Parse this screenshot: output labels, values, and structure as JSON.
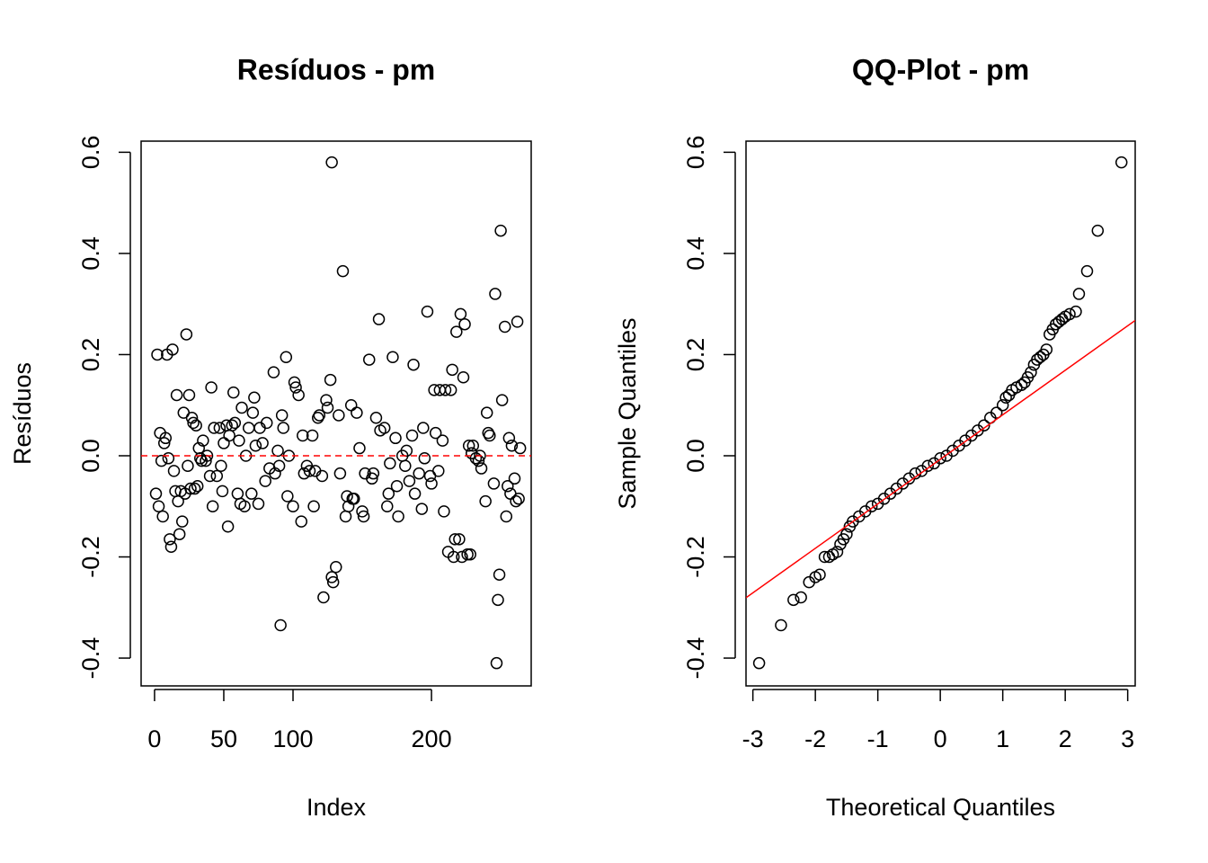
{
  "chart_data": [
    {
      "type": "scatter",
      "title": "Resíduos - pm",
      "xlabel": "Index",
      "ylabel": "Resíduos",
      "x": [
        1,
        2,
        3,
        4,
        5,
        6,
        7,
        8,
        9,
        10,
        11,
        12,
        13,
        14,
        15,
        16,
        17,
        18,
        19,
        20,
        21,
        22,
        23,
        24,
        25,
        26,
        27,
        28,
        29,
        30,
        31,
        32,
        33,
        34,
        35,
        37,
        38,
        40,
        41,
        42,
        43,
        45,
        47,
        48,
        49,
        50,
        52,
        53,
        54,
        56,
        57,
        58,
        60,
        61,
        62,
        63,
        65,
        66,
        68,
        70,
        71,
        72,
        73,
        75,
        76,
        78,
        80,
        81,
        83,
        86,
        87,
        91,
        89,
        90,
        95,
        92,
        93,
        96,
        97,
        100,
        101,
        102,
        104,
        106,
        107,
        108,
        110,
        112,
        114,
        115,
        116,
        118,
        119,
        121,
        122,
        124,
        125,
        128,
        127,
        128,
        129,
        131,
        133,
        134,
        136,
        138,
        139,
        140,
        142,
        143,
        144,
        146,
        148,
        150,
        151,
        152,
        155,
        157,
        158,
        160,
        162,
        163,
        166,
        168,
        169,
        170,
        172,
        174,
        175,
        176,
        179,
        181,
        182,
        184,
        186,
        187,
        188,
        191,
        193,
        194,
        195,
        197,
        199,
        200,
        202,
        203,
        205,
        206,
        208,
        209,
        210,
        212,
        214,
        215,
        216,
        217,
        218,
        220,
        221,
        222,
        223,
        224,
        226,
        227,
        228,
        229,
        230,
        232,
        234,
        235,
        236,
        239,
        240,
        241,
        242,
        245,
        246,
        247,
        248,
        249,
        250,
        251,
        253,
        254,
        255,
        256,
        257,
        258,
        260,
        261,
        262,
        263,
        264
      ],
      "values": [
        -0.075,
        0.2,
        -0.1,
        0.045,
        -0.01,
        -0.12,
        0.025,
        0.035,
        0.2,
        -0.005,
        -0.165,
        -0.18,
        0.21,
        -0.03,
        -0.07,
        0.12,
        -0.09,
        -0.155,
        -0.07,
        -0.13,
        0.085,
        -0.075,
        0.24,
        -0.02,
        0.12,
        -0.065,
        0.075,
        0.065,
        -0.065,
        0.06,
        -0.06,
        0.015,
        -0.005,
        -0.01,
        0.03,
        -0.01,
        0,
        -0.04,
        0.135,
        -0.1,
        0.055,
        -0.04,
        0.055,
        -0.02,
        -0.07,
        0.025,
        0.06,
        -0.14,
        0.04,
        0.06,
        0.125,
        0.065,
        -0.075,
        0.03,
        -0.095,
        0.095,
        -0.1,
        0,
        0.055,
        -0.075,
        0.085,
        0.115,
        0.02,
        -0.095,
        0.055,
        0.025,
        -0.05,
        0.065,
        -0.025,
        0.165,
        -0.035,
        -0.335,
        0.01,
        -0.02,
        0.195,
        0.08,
        0.055,
        -0.08,
        0,
        -0.1,
        0.145,
        0.135,
        0.12,
        -0.13,
        0.04,
        -0.035,
        -0.02,
        -0.03,
        0.04,
        -0.1,
        -0.03,
        0.075,
        0.08,
        -0.04,
        -0.28,
        0.11,
        0.095,
        0.58,
        0.15,
        -0.24,
        -0.25,
        -0.22,
        0.08,
        -0.035,
        0.365,
        -0.12,
        -0.08,
        -0.1,
        0.1,
        -0.085,
        -0.085,
        0.085,
        0.015,
        -0.11,
        -0.12,
        -0.035,
        0.19,
        -0.045,
        -0.035,
        0.075,
        0.27,
        0.05,
        0.055,
        -0.1,
        -0.075,
        -0.015,
        0.195,
        0.035,
        -0.06,
        -0.12,
        0,
        -0.02,
        0.01,
        -0.05,
        0.04,
        0.18,
        -0.075,
        -0.035,
        -0.105,
        0.055,
        -0.005,
        0.285,
        -0.04,
        -0.055,
        0.13,
        0.045,
        -0.03,
        0.13,
        0.03,
        -0.11,
        0.13,
        -0.19,
        0.13,
        0.17,
        -0.2,
        -0.165,
        0.245,
        -0.165,
        0.28,
        -0.2,
        0.155,
        0.26,
        -0.195,
        0.02,
        -0.195,
        0.005,
        0.02,
        -0.005,
        -0.01,
        0,
        -0.025,
        -0.09,
        0.085,
        0.045,
        0.04,
        -0.055,
        0.32,
        -0.41,
        -0.285,
        -0.235,
        0.445,
        0.11,
        0.255,
        -0.12,
        -0.06,
        0.035,
        -0.075,
        0.02,
        -0.045,
        -0.09,
        0.265,
        -0.085,
        0.015
      ],
      "xlim": [
        -9.7,
        272
      ],
      "ylim": [
        -0.455,
        0.622
      ],
      "xticks": [
        0,
        50,
        100,
        200
      ],
      "yticks": [
        {
          "value": -0.4,
          "label": "-0.4"
        },
        {
          "value": -0.2,
          "label": "-0.2"
        },
        {
          "value": 0,
          "label": "0.0"
        },
        {
          "value": 0.2,
          "label": "0.2"
        },
        {
          "value": 0.4,
          "label": "0.4"
        },
        {
          "value": 0.6,
          "label": "0.6"
        }
      ],
      "color": "#000000",
      "hline": 0,
      "hline_color": "#ff0000"
    },
    {
      "type": "qq",
      "title": "QQ-Plot - pm",
      "xlabel": "Theoretical Quantiles",
      "ylabel": "Sample Quantiles",
      "x": [
        -2.9,
        -2.55,
        -2.35,
        -2.23,
        -2.1,
        -2.0,
        -1.93,
        -1.85,
        -1.78,
        -1.72,
        -1.65,
        -1.6,
        -1.55,
        -1.5,
        -1.45,
        -1.4,
        -1.3,
        -1.2,
        -1.1,
        -1.0,
        -0.9,
        -0.8,
        -0.7,
        -0.6,
        -0.5,
        -0.4,
        -0.3,
        -0.2,
        -0.1,
        0,
        0.1,
        0.2,
        0.3,
        0.4,
        0.5,
        0.6,
        0.7,
        0.8,
        0.9,
        1.0,
        1.05,
        1.1,
        1.15,
        1.22,
        1.3,
        1.35,
        1.4,
        1.45,
        1.5,
        1.55,
        1.6,
        1.65,
        1.7,
        1.75,
        1.8,
        1.85,
        1.9,
        1.95,
        2.0,
        2.07,
        2.17,
        2.22,
        2.35,
        2.52,
        2.9
      ],
      "values": [
        -0.41,
        -0.335,
        -0.285,
        -0.28,
        -0.25,
        -0.24,
        -0.235,
        -0.2,
        -0.2,
        -0.195,
        -0.19,
        -0.175,
        -0.165,
        -0.155,
        -0.14,
        -0.13,
        -0.12,
        -0.11,
        -0.1,
        -0.095,
        -0.085,
        -0.075,
        -0.065,
        -0.055,
        -0.045,
        -0.035,
        -0.03,
        -0.02,
        -0.015,
        -0.005,
        0,
        0.01,
        0.02,
        0.03,
        0.04,
        0.05,
        0.06,
        0.075,
        0.085,
        0.1,
        0.115,
        0.12,
        0.13,
        0.135,
        0.14,
        0.145,
        0.155,
        0.165,
        0.18,
        0.19,
        0.195,
        0.2,
        0.21,
        0.24,
        0.25,
        0.26,
        0.265,
        0.27,
        0.275,
        0.28,
        0.285,
        0.32,
        0.365,
        0.445,
        0.58
      ],
      "xlim": [
        -3.11,
        3.12
      ],
      "ylim": [
        -0.455,
        0.622
      ],
      "xticks": [
        -3,
        -2,
        -1,
        0,
        1,
        2,
        3
      ],
      "yticks": [
        {
          "value": -0.4,
          "label": "-0.4"
        },
        {
          "value": -0.2,
          "label": "-0.2"
        },
        {
          "value": 0,
          "label": "0.0"
        },
        {
          "value": 0.2,
          "label": "0.2"
        },
        {
          "value": 0.4,
          "label": "0.4"
        },
        {
          "value": 0.6,
          "label": "0.6"
        }
      ],
      "color": "#000000",
      "qqline": {
        "intercept": -0.007,
        "slope": 0.088
      },
      "line_color": "#ff0000"
    }
  ]
}
